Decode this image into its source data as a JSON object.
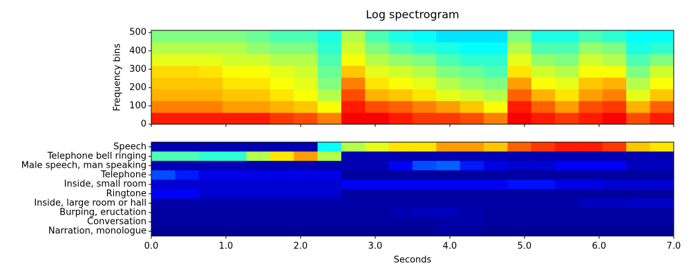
{
  "chart_data": [
    {
      "type": "spectrogram",
      "title": "Log spectrogram",
      "ylabel": "Frequency bins",
      "colormap": "jet",
      "zlim": [
        0,
        1
      ],
      "xlim": [
        0,
        7
      ],
      "xticks": [
        0,
        1,
        2,
        3,
        4,
        5,
        6,
        7
      ],
      "ylim": [
        0,
        512
      ],
      "yticks": [
        0,
        100,
        200,
        300,
        400,
        500
      ],
      "values": [
        [
          0.85,
          0.85,
          0.85,
          0.85,
          0.85,
          0.82,
          0.8,
          0.75,
          0.88,
          0.88,
          0.85,
          0.82,
          0.82,
          0.8,
          0.75,
          0.88,
          0.85,
          0.82,
          0.85,
          0.88,
          0.8,
          0.85
        ],
        [
          0.75,
          0.75,
          0.75,
          0.72,
          0.72,
          0.7,
          0.68,
          0.62,
          0.85,
          0.8,
          0.78,
          0.75,
          0.72,
          0.68,
          0.62,
          0.85,
          0.78,
          0.72,
          0.8,
          0.82,
          0.7,
          0.78
        ],
        [
          0.7,
          0.7,
          0.7,
          0.68,
          0.68,
          0.65,
          0.62,
          0.55,
          0.8,
          0.7,
          0.68,
          0.65,
          0.6,
          0.58,
          0.55,
          0.78,
          0.7,
          0.65,
          0.72,
          0.75,
          0.6,
          0.68
        ],
        [
          0.68,
          0.68,
          0.68,
          0.65,
          0.65,
          0.62,
          0.6,
          0.5,
          0.75,
          0.65,
          0.62,
          0.6,
          0.55,
          0.52,
          0.5,
          0.72,
          0.62,
          0.6,
          0.68,
          0.7,
          0.55,
          0.62
        ],
        [
          0.66,
          0.66,
          0.65,
          0.62,
          0.62,
          0.6,
          0.58,
          0.48,
          0.68,
          0.6,
          0.58,
          0.55,
          0.5,
          0.48,
          0.45,
          0.65,
          0.58,
          0.55,
          0.62,
          0.62,
          0.5,
          0.58
        ],
        [
          0.6,
          0.6,
          0.6,
          0.58,
          0.58,
          0.55,
          0.55,
          0.45,
          0.62,
          0.55,
          0.52,
          0.5,
          0.45,
          0.42,
          0.42,
          0.6,
          0.52,
          0.5,
          0.58,
          0.55,
          0.45,
          0.5
        ],
        [
          0.55,
          0.55,
          0.55,
          0.55,
          0.52,
          0.5,
          0.5,
          0.42,
          0.58,
          0.5,
          0.45,
          0.42,
          0.4,
          0.38,
          0.38,
          0.55,
          0.45,
          0.45,
          0.52,
          0.5,
          0.4,
          0.42
        ],
        [
          0.5,
          0.5,
          0.5,
          0.5,
          0.48,
          0.45,
          0.45,
          0.4,
          0.55,
          0.45,
          0.4,
          0.38,
          0.35,
          0.35,
          0.35,
          0.5,
          0.4,
          0.4,
          0.45,
          0.42,
          0.38,
          0.38
        ]
      ]
    },
    {
      "type": "heatmap",
      "xlabel": "Seconds",
      "colormap": "jet",
      "zlim": [
        0,
        1
      ],
      "xlim": [
        0,
        7
      ],
      "xticks": [
        {
          "value": 0,
          "label": "0.0"
        },
        {
          "value": 1,
          "label": "1.0"
        },
        {
          "value": 2,
          "label": "2.0"
        },
        {
          "value": 3,
          "label": "3.0"
        },
        {
          "value": 4,
          "label": "4.0"
        },
        {
          "value": 5,
          "label": "5.0"
        },
        {
          "value": 6,
          "label": "6.0"
        },
        {
          "value": 7,
          "label": "7.0"
        }
      ],
      "categories": [
        "Speech",
        "Telephone bell ringing",
        "Male speech, man speaking",
        "Telephone",
        "Inside, small room",
        "Ringtone",
        "Inside, large room or hall",
        "Burping, eructation",
        "Conversation",
        "Narration, monologue"
      ],
      "values": [
        [
          0.05,
          0.05,
          0.05,
          0.05,
          0.05,
          0.05,
          0.05,
          0.38,
          0.55,
          0.6,
          0.65,
          0.65,
          0.72,
          0.72,
          0.68,
          0.78,
          0.82,
          0.85,
          0.85,
          0.82,
          0.68,
          0.65
        ],
        [
          0.45,
          0.45,
          0.42,
          0.42,
          0.55,
          0.65,
          0.72,
          0.55,
          0.05,
          0.05,
          0.05,
          0.05,
          0.05,
          0.05,
          0.05,
          0.05,
          0.05,
          0.05,
          0.05,
          0.05,
          0.05,
          0.05
        ],
        [
          0.05,
          0.05,
          0.05,
          0.05,
          0.05,
          0.05,
          0.05,
          0.05,
          0.05,
          0.05,
          0.12,
          0.2,
          0.22,
          0.15,
          0.1,
          0.08,
          0.08,
          0.12,
          0.12,
          0.12,
          0.06,
          0.06
        ],
        [
          0.2,
          0.15,
          0.1,
          0.1,
          0.1,
          0.1,
          0.1,
          0.1,
          0.03,
          0.03,
          0.03,
          0.03,
          0.03,
          0.03,
          0.03,
          0.03,
          0.03,
          0.03,
          0.03,
          0.03,
          0.03,
          0.03
        ],
        [
          0.08,
          0.08,
          0.08,
          0.08,
          0.08,
          0.08,
          0.08,
          0.08,
          0.12,
          0.12,
          0.12,
          0.12,
          0.12,
          0.12,
          0.12,
          0.14,
          0.14,
          0.1,
          0.1,
          0.08,
          0.08,
          0.08
        ],
        [
          0.12,
          0.12,
          0.08,
          0.08,
          0.08,
          0.08,
          0.08,
          0.08,
          0.03,
          0.03,
          0.03,
          0.03,
          0.03,
          0.03,
          0.03,
          0.03,
          0.03,
          0.03,
          0.03,
          0.03,
          0.03,
          0.03
        ],
        [
          0.04,
          0.04,
          0.04,
          0.04,
          0.04,
          0.04,
          0.04,
          0.04,
          0.04,
          0.04,
          0.04,
          0.04,
          0.04,
          0.04,
          0.04,
          0.04,
          0.04,
          0.04,
          0.06,
          0.06,
          0.07,
          0.07
        ],
        [
          0.03,
          0.03,
          0.03,
          0.03,
          0.03,
          0.03,
          0.03,
          0.03,
          0.03,
          0.03,
          0.05,
          0.06,
          0.06,
          0.04,
          0.03,
          0.03,
          0.03,
          0.03,
          0.03,
          0.03,
          0.03,
          0.03
        ],
        [
          0.03,
          0.03,
          0.03,
          0.03,
          0.03,
          0.03,
          0.03,
          0.03,
          0.03,
          0.03,
          0.03,
          0.03,
          0.04,
          0.04,
          0.03,
          0.03,
          0.03,
          0.03,
          0.03,
          0.03,
          0.03,
          0.03
        ],
        [
          0.02,
          0.02,
          0.02,
          0.02,
          0.02,
          0.02,
          0.02,
          0.02,
          0.02,
          0.02,
          0.02,
          0.02,
          0.03,
          0.03,
          0.02,
          0.02,
          0.02,
          0.02,
          0.02,
          0.02,
          0.02,
          0.02
        ]
      ]
    }
  ]
}
